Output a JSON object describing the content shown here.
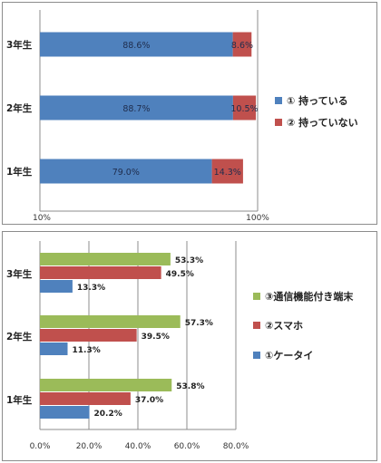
{
  "chart_data": [
    {
      "type": "bar",
      "orientation": "horizontal",
      "stacked": true,
      "categories": [
        "3年生",
        "2年生",
        "1年生"
      ],
      "series": [
        {
          "name": "① 持っている",
          "values": [
            88.6,
            88.7,
            79.0
          ],
          "labels": [
            "88.6%",
            "88.7%",
            "79.0%"
          ],
          "color": "#4f81bd"
        },
        {
          "name": "② 持っていない",
          "values": [
            8.6,
            10.5,
            14.3
          ],
          "labels": [
            "8.6%",
            "10.5%",
            "14.3%"
          ],
          "color": "#c0504d"
        }
      ],
      "xticks": [
        "10%",
        "100%"
      ],
      "grid": true,
      "legend": "right"
    },
    {
      "type": "bar",
      "orientation": "horizontal",
      "categories": [
        "3年生",
        "2年生",
        "1年生"
      ],
      "series": [
        {
          "name": "③通信機能付き端末",
          "values": [
            53.3,
            57.3,
            53.8
          ],
          "labels": [
            "53.3%",
            "57.3%",
            "53.8%"
          ],
          "color": "#9bbb59"
        },
        {
          "name": "②スマホ",
          "values": [
            49.5,
            39.5,
            37.0
          ],
          "labels": [
            "49.5%",
            "39.5%",
            "37.0%"
          ],
          "color": "#c0504d"
        },
        {
          "name": "①ケータイ",
          "values": [
            13.3,
            11.3,
            20.2
          ],
          "labels": [
            "13.3%",
            "11.3%",
            "20.2%"
          ],
          "color": "#4f81bd"
        }
      ],
      "xlim": [
        0,
        80
      ],
      "xticks": [
        "0.0%",
        "20.0%",
        "40.0%",
        "60.0%",
        "80.0%"
      ],
      "grid": true,
      "legend": "right"
    }
  ]
}
